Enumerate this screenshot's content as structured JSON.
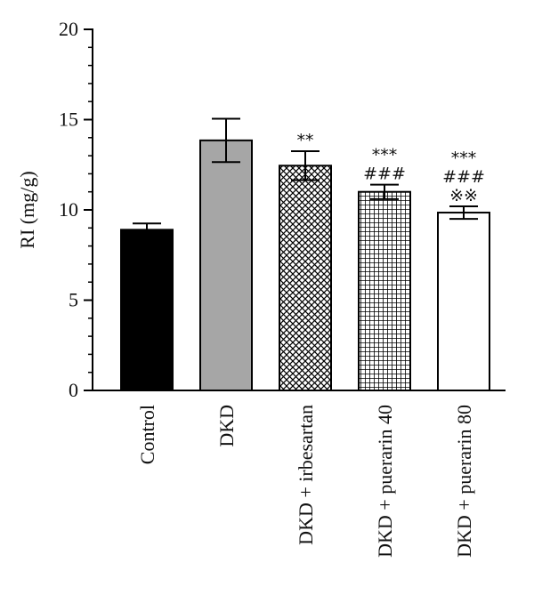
{
  "chart_data": {
    "type": "bar",
    "title": "",
    "xlabel": "",
    "ylabel": "RI (mg/g)",
    "ylim": [
      0,
      20
    ],
    "yticks": [
      0,
      5,
      10,
      15,
      20
    ],
    "grid": false,
    "categories": [
      "Control",
      "DKD",
      "DKD + irbesartan",
      "DKD + puerarin 40",
      "DKD + puerarin 80"
    ],
    "values": [
      8.9,
      13.85,
      12.45,
      11.0,
      9.85
    ],
    "errors": [
      0.35,
      1.2,
      0.8,
      0.4,
      0.35
    ],
    "fills": [
      "solid-black",
      "solid-gray",
      "crosshatch-diagonal",
      "crosshatch-grid",
      "white"
    ],
    "annotations": [
      [],
      [],
      [
        "**"
      ],
      [
        "***",
        "###"
      ],
      [
        "***",
        "###",
        "※※"
      ]
    ]
  }
}
